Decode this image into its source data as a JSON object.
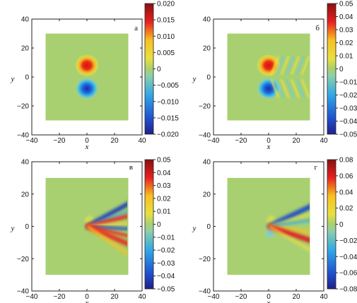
{
  "chart_data": [
    {
      "type": "heatmap",
      "panel_label": "а",
      "xlabel": "x",
      "ylabel": "y",
      "xlim": [
        -40,
        40
      ],
      "ylim": [
        -40,
        40
      ],
      "data_extent": [
        -30,
        30
      ],
      "x_ticks": [
        "−40",
        "−20",
        "0",
        "20",
        "40"
      ],
      "y_ticks": [
        "40",
        "20",
        "0",
        "−20",
        "−40"
      ],
      "colorbar_range": [
        -0.02,
        0.02
      ],
      "colorbar_ticks": [
        "0.020",
        "0.015",
        "0.010",
        "0.005",
        "0",
        "−0.005",
        "−0.010",
        "−0.015",
        "−0.020"
      ],
      "pattern": "dipole"
    },
    {
      "type": "heatmap",
      "panel_label": "б",
      "xlabel": "x",
      "ylabel": "y",
      "xlim": [
        -40,
        40
      ],
      "ylim": [
        -40,
        40
      ],
      "data_extent": [
        -30,
        30
      ],
      "x_ticks": [
        "−40",
        "−20",
        "0",
        "20",
        "40"
      ],
      "y_ticks": [
        "40",
        "20",
        "0",
        "−20",
        "−40"
      ],
      "colorbar_range": [
        -0.05,
        0.05
      ],
      "colorbar_ticks": [
        "0.05",
        "0.04",
        "0.03",
        "0.02",
        "0.01",
        "0",
        "−0.01",
        "−0.02",
        "−0.03",
        "−0.04",
        "−0.05"
      ],
      "pattern": "dipole-with-wake"
    },
    {
      "type": "heatmap",
      "panel_label": "в",
      "xlabel": "x",
      "ylabel": "y",
      "xlim": [
        -40,
        40
      ],
      "ylim": [
        -40,
        40
      ],
      "data_extent": [
        -30,
        30
      ],
      "x_ticks": [
        "−40",
        "−20",
        "0",
        "20",
        "40"
      ],
      "y_ticks": [
        "40",
        "20",
        "0",
        "−20",
        "−40"
      ],
      "colorbar_range": [
        -0.05,
        0.05
      ],
      "colorbar_ticks": [
        "0.05",
        "0.04",
        "0.03",
        "0.02",
        "0.01",
        "0",
        "−0.01",
        "−0.02",
        "−0.03",
        "−0.04",
        "−0.05"
      ],
      "pattern": "wedge-wake"
    },
    {
      "type": "heatmap",
      "panel_label": "г",
      "xlabel": "x",
      "ylabel": "y",
      "xlim": [
        -40,
        40
      ],
      "ylim": [
        -40,
        40
      ],
      "data_extent": [
        -30,
        30
      ],
      "x_ticks": [
        "−40",
        "−20",
        "0",
        "20",
        "40"
      ],
      "y_ticks": [
        "40",
        "20",
        "0",
        "−20",
        "−40"
      ],
      "colorbar_range": [
        -0.08,
        0.08
      ],
      "colorbar_ticks": [
        "0.08",
        "0.06",
        "0.04",
        "0.02",
        "0",
        "−0.02",
        "−0.04",
        "−0.06",
        "−0.08"
      ],
      "pattern": "wedge-wake-strong"
    }
  ]
}
